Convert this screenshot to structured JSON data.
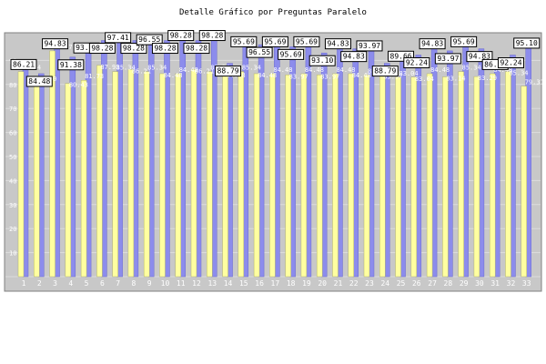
{
  "chart_data": {
    "type": "bar",
    "title": "Detalle Gráfico por Preguntas Paralelo",
    "categories": [
      "1",
      "2",
      "3",
      "4",
      "5",
      "6",
      "7",
      "8",
      "9",
      "10",
      "11",
      "12",
      "13",
      "14",
      "15",
      "16",
      "17",
      "18",
      "19",
      "20",
      "21",
      "22",
      "23",
      "24",
      "25",
      "26",
      "27",
      "28",
      "29",
      "30",
      "31",
      "32",
      "33"
    ],
    "ylim": [
      0,
      100
    ],
    "yticks": [
      10,
      20,
      30,
      40,
      50,
      60,
      70,
      80,
      90
    ],
    "grid": true,
    "colors": {
      "series_a": "#8c8cec",
      "series_b": "#ffffa0",
      "plot_bg": "#c8c8c8",
      "label_box": "#ffffff",
      "inner_label": "#ffffff"
    },
    "series": [
      {
        "values": [
          86.21,
          84.48,
          94.83,
          91.38,
          93.1,
          98.28,
          97.41,
          98.28,
          96.55,
          98.28,
          98.28,
          98.28,
          98.28,
          88.79,
          95.69,
          96.55,
          95.69,
          95.69,
          95.69,
          93.1,
          94.83,
          94.83,
          93.97,
          88.79,
          89.66,
          92.24,
          94.83,
          93.97,
          95.69,
          94.83,
          86.21,
          92.24,
          95.1
        ]
      },
      {
        "values": [
          85.34,
          82.9,
          93.97,
          80.43,
          81.73,
          87.93,
          85.34,
          86.21,
          85.34,
          84.48,
          84.48,
          86.21,
          85.34,
          84.48,
          85.34,
          84.48,
          84.48,
          83.97,
          84.48,
          83.97,
          84.48,
          84.48,
          83.97,
          83.97,
          83.04,
          83.04,
          84.48,
          83.14,
          85.34,
          83.29,
          84.48,
          85.34,
          79.31
        ]
      }
    ]
  }
}
